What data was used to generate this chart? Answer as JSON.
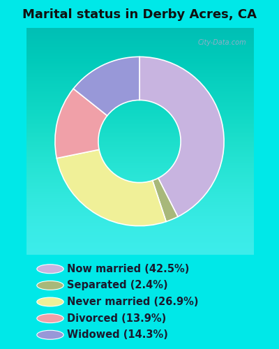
{
  "title": "Marital status in Derby Acres, CA",
  "slices": [
    {
      "label": "Now married (42.5%)",
      "value": 42.5,
      "color": "#c8b4e0"
    },
    {
      "label": "Separated (2.4%)",
      "value": 2.4,
      "color": "#a8b87a"
    },
    {
      "label": "Never married (26.9%)",
      "value": 26.9,
      "color": "#f0f098"
    },
    {
      "label": "Divorced (13.9%)",
      "value": 13.9,
      "color": "#f0a0a8"
    },
    {
      "label": "Widowed (14.3%)",
      "value": 14.3,
      "color": "#9898d8"
    }
  ],
  "bg_cyan": "#00e8e8",
  "bg_chart_top": "#d0ead0",
  "bg_chart_bottom": "#e8f8e8",
  "watermark": "City-Data.com",
  "title_fontsize": 13,
  "legend_fontsize": 10.5,
  "legend_text_color": "#1a1a2e",
  "title_color": "#111111"
}
